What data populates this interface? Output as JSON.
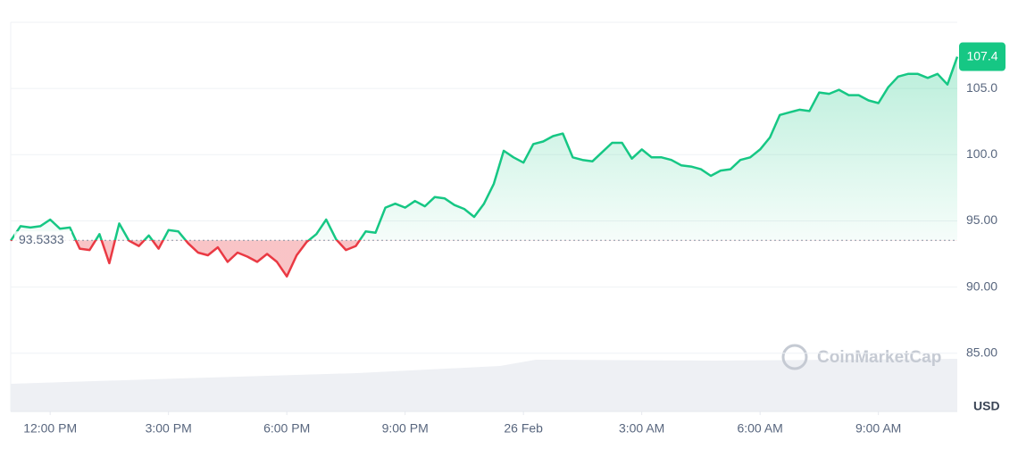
{
  "chart_data": {
    "type": "line",
    "x": [
      11,
      11.25,
      11.5,
      11.75,
      12,
      12.25,
      12.5,
      12.75,
      13,
      13.25,
      13.5,
      13.75,
      14,
      14.25,
      14.5,
      14.75,
      15,
      15.25,
      15.5,
      15.75,
      16,
      16.25,
      16.5,
      16.75,
      17,
      17.25,
      17.5,
      17.75,
      18,
      18.25,
      18.5,
      18.75,
      19,
      19.25,
      19.5,
      19.75,
      20,
      20.25,
      20.5,
      20.75,
      21,
      21.25,
      21.5,
      21.75,
      22,
      22.25,
      22.5,
      22.75,
      23,
      23.25,
      23.5,
      23.75,
      24,
      24.25,
      24.5,
      24.75,
      25,
      25.25,
      25.5,
      25.75,
      26,
      26.25,
      26.5,
      26.75,
      27,
      27.25,
      27.5,
      27.75,
      28,
      28.25,
      28.5,
      28.75,
      29,
      29.25,
      29.5,
      29.75,
      30,
      30.25,
      30.5,
      30.75,
      31,
      31.25,
      31.5,
      31.75,
      32,
      32.25,
      32.5,
      32.75,
      33,
      33.25,
      33.5,
      33.75,
      34,
      34.25,
      34.5,
      34.75,
      35
    ],
    "values": [
      93.5,
      94.6,
      94.5,
      94.6,
      95.1,
      94.4,
      94.5,
      92.9,
      92.8,
      94.0,
      91.8,
      94.8,
      93.5,
      93.1,
      93.9,
      92.9,
      94.3,
      94.2,
      93.3,
      92.6,
      92.4,
      93.0,
      91.9,
      92.6,
      92.3,
      91.9,
      92.5,
      91.9,
      90.8,
      92.4,
      93.4,
      94.0,
      95.1,
      93.6,
      92.8,
      93.1,
      94.2,
      94.1,
      96.0,
      96.3,
      96.0,
      96.5,
      96.1,
      96.8,
      96.7,
      96.2,
      95.9,
      95.3,
      96.3,
      97.8,
      100.3,
      99.8,
      99.4,
      100.8,
      101.0,
      101.4,
      101.6,
      99.8,
      99.6,
      99.5,
      100.2,
      100.9,
      100.9,
      99.7,
      100.4,
      99.8,
      99.8,
      99.6,
      99.2,
      99.1,
      98.9,
      98.4,
      98.8,
      98.9,
      99.6,
      99.8,
      100.4,
      101.3,
      103.0,
      103.2,
      103.4,
      103.3,
      104.7,
      104.6,
      104.9,
      104.5,
      104.5,
      104.1,
      103.9,
      105.1,
      105.9,
      106.1,
      106.1,
      105.8,
      106.1,
      105.3,
      107.4
    ],
    "baseline": 93.5333,
    "up_color": "#16c784",
    "down_color": "#ea3943",
    "xlim": [
      11,
      35
    ],
    "xticks": [
      {
        "value": 12,
        "label": "12:00 PM"
      },
      {
        "value": 15,
        "label": "3:00 PM"
      },
      {
        "value": 18,
        "label": "6:00 PM"
      },
      {
        "value": 21,
        "label": "9:00 PM"
      },
      {
        "value": 24,
        "label": "26 Feb"
      },
      {
        "value": 27,
        "label": "3:00 AM"
      },
      {
        "value": 30,
        "label": "6:00 AM"
      },
      {
        "value": 33,
        "label": "9:00 AM"
      }
    ],
    "ylim": [
      80.6,
      110
    ],
    "yticks": [
      {
        "value": 85,
        "label": "85.00"
      },
      {
        "value": 90,
        "label": "90.00"
      },
      {
        "value": 95,
        "label": "95.00"
      },
      {
        "value": 100,
        "label": "100.0"
      },
      {
        "value": 105,
        "label": "105.0"
      }
    ],
    "unit": "USD",
    "watermark": "CoinMarketCap",
    "grid": true
  }
}
